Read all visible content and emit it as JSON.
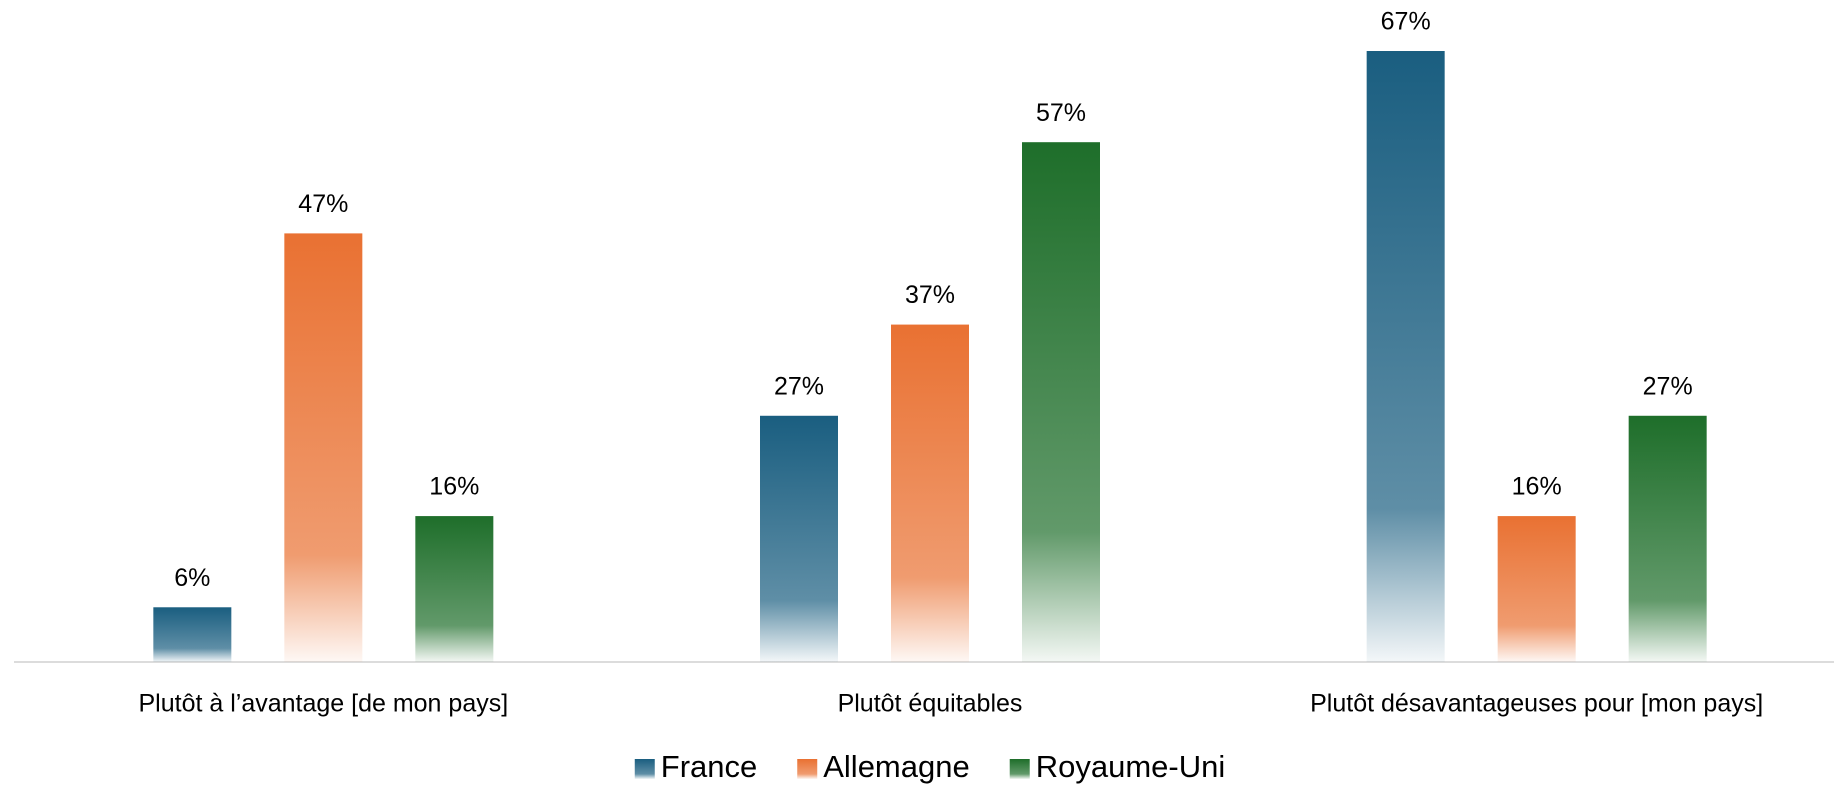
{
  "chart_data": {
    "type": "bar",
    "categories": [
      "Plutôt à l’avantage [de mon pays]",
      "Plutôt équitables",
      "Plutôt désavantageuses pour [mon pays]"
    ],
    "series": [
      {
        "name": "France",
        "color": "#1a5e80",
        "values": [
          6,
          27,
          67
        ],
        "value_labels": [
          "6%",
          "27%",
          "67%"
        ]
      },
      {
        "name": "Allemagne",
        "color": "#e97132",
        "values": [
          47,
          37,
          16
        ],
        "value_labels": [
          "47%",
          "37%",
          "16%"
        ]
      },
      {
        "name": "Royaume-Uni",
        "color": "#1e6e2a",
        "values": [
          16,
          57,
          27
        ],
        "value_labels": [
          "16%",
          "57%",
          "27%"
        ]
      }
    ],
    "legend": "bottom"
  }
}
